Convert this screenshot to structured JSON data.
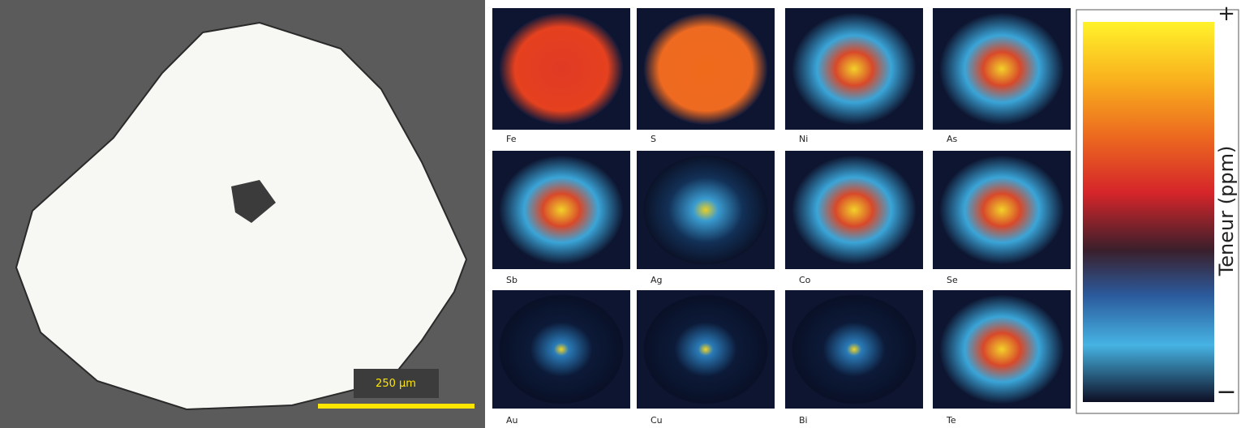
{
  "micrograph": {
    "scale_bar": "250 µm"
  },
  "maps": [
    {
      "label": "Fe"
    },
    {
      "label": "S"
    },
    {
      "label": "Ni"
    },
    {
      "label": "As"
    },
    {
      "label": "Sb"
    },
    {
      "label": "Ag"
    },
    {
      "label": "Co"
    },
    {
      "label": "Se"
    },
    {
      "label": "Au"
    },
    {
      "label": "Cu"
    },
    {
      "label": "Bi"
    },
    {
      "label": "Te"
    }
  ],
  "colorbar": {
    "title": "Teneur (ppm)",
    "max_label": "+",
    "min_label": "−"
  }
}
